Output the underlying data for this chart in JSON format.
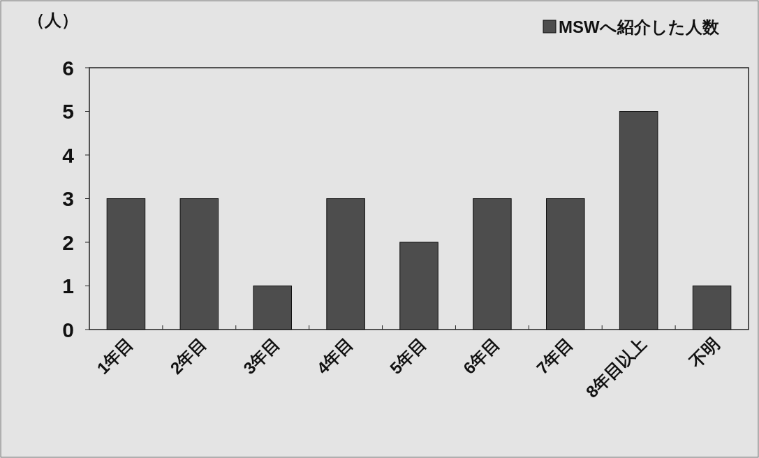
{
  "chart_data": {
    "type": "bar",
    "ylabel": "（人）",
    "categories": [
      "1年目",
      "2年目",
      "3年目",
      "4年目",
      "5年目",
      "6年目",
      "7年目",
      "8年目以上",
      "不明"
    ],
    "series": [
      {
        "name": "MSWへ紹介した人数",
        "color": "#4d4d4d",
        "values": [
          3,
          3,
          1,
          3,
          2,
          3,
          3,
          5,
          1
        ]
      }
    ],
    "ylim": [
      0,
      6
    ],
    "yticks": [
      0,
      1,
      2,
      3,
      4,
      5,
      6
    ],
    "legend": "top right",
    "grid": false
  }
}
